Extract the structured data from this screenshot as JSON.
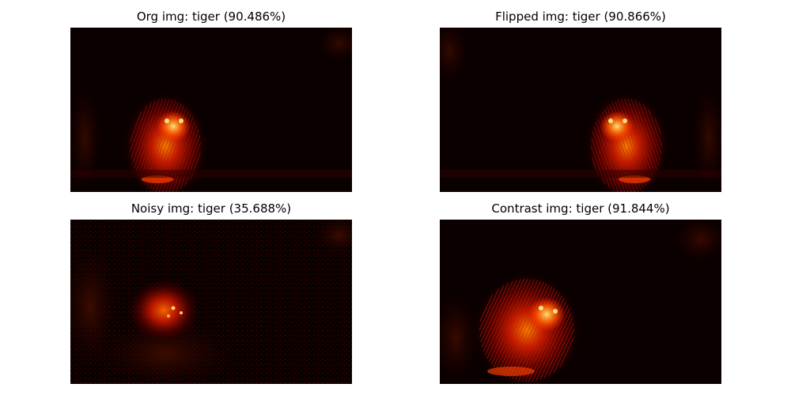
{
  "figure": {
    "colormap": "hot",
    "background_color": "#0a0000",
    "panels": [
      {
        "title": "Org img: tiger  (90.486%)"
      },
      {
        "title": "Flipped img: tiger  (90.866%)"
      },
      {
        "title": "Noisy img: tiger  (35.688%)"
      },
      {
        "title": "Contrast img: tiger  (91.844%)"
      }
    ]
  }
}
